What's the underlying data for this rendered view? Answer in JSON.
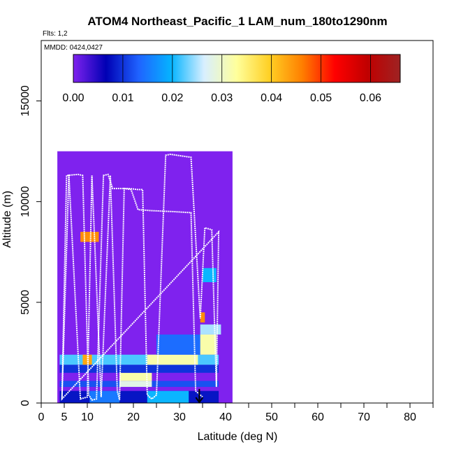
{
  "chart_data": {
    "type": "heatmap",
    "title": "ATOM4 Northeast_Pacific_1 LAM_num_180to1290nm",
    "flights_note": "Flts: 1,2",
    "date_note": "MMDD: 0424,0427",
    "xlabel": "Latitude (deg N)",
    "ylabel": "Altitude (m)",
    "xlim": [
      0,
      85
    ],
    "ylim": [
      0,
      18000
    ],
    "x_ticks": [
      0,
      5,
      10,
      20,
      30,
      40,
      50,
      60,
      70,
      80
    ],
    "x_tick_labels": [
      "0",
      "5",
      "10",
      "20",
      "30",
      "40",
      "50",
      "60",
      "70",
      "80"
    ],
    "y_ticks": [
      0,
      5000,
      10000,
      15000
    ],
    "y_tick_labels": [
      "0",
      "5000",
      "10000",
      "15000"
    ],
    "colorbar": {
      "min": 0.0,
      "max": 0.066,
      "ticks": [
        0.0,
        0.01,
        0.02,
        0.03,
        0.04,
        0.05,
        0.06
      ],
      "tick_labels": [
        "0.00",
        "0.01",
        "0.02",
        "0.03",
        "0.04",
        "0.05",
        "0.06"
      ],
      "colors": [
        "#7f22ee",
        "#0000b4",
        "#1f63ff",
        "#05b4ff",
        "#d8efff",
        "#ffff9b",
        "#ffd024",
        "#ff7f00",
        "#ff0000",
        "#c00000",
        "#9e2323"
      ]
    },
    "cells": [
      {
        "x": [
          3.5,
          41.5
        ],
        "y": [
          0,
          12500
        ],
        "v": 0.0
      },
      {
        "x": [
          4.0,
          38.5
        ],
        "y": [
          0,
          600
        ],
        "v": 0.008
      },
      {
        "x": [
          10.5,
          17.0
        ],
        "y": [
          0,
          600
        ],
        "v": 0.015
      },
      {
        "x": [
          23.0,
          32.0
        ],
        "y": [
          0,
          600
        ],
        "v": 0.02
      },
      {
        "x": [
          4.0,
          38.5
        ],
        "y": [
          800,
          1100
        ],
        "v": 0.012
      },
      {
        "x": [
          17.0,
          24.0
        ],
        "y": [
          800,
          1100
        ],
        "v": 0.028
      },
      {
        "x": [
          17.0,
          24.0
        ],
        "y": [
          1100,
          1500
        ],
        "v": 0.032
      },
      {
        "x": [
          4.0,
          38.5
        ],
        "y": [
          1500,
          1900
        ],
        "v": 0.01
      },
      {
        "x": [
          4.0,
          38.5
        ],
        "y": [
          1900,
          2400
        ],
        "v": 0.022
      },
      {
        "x": [
          9.0,
          11.0
        ],
        "y": [
          1900,
          2400
        ],
        "v": 0.043
      },
      {
        "x": [
          23.0,
          34.0
        ],
        "y": [
          1900,
          2400
        ],
        "v": 0.032
      },
      {
        "x": [
          25.0,
          38.0
        ],
        "y": [
          2400,
          3400
        ],
        "v": 0.014
      },
      {
        "x": [
          34.5,
          38.0
        ],
        "y": [
          2400,
          3400
        ],
        "v": 0.032
      },
      {
        "x": [
          34.5,
          39.0
        ],
        "y": [
          3400,
          3900
        ],
        "v": 0.025
      },
      {
        "x": [
          34.5,
          35.5
        ],
        "y": [
          4000,
          4500
        ],
        "v": 0.045
      },
      {
        "x": [
          35.0,
          38.0
        ],
        "y": [
          6000,
          6700
        ],
        "v": 0.02
      },
      {
        "x": [
          8.5,
          12.5
        ],
        "y": [
          8000,
          8500
        ],
        "v": 0.045
      }
    ],
    "flight_track": [
      [
        4.5,
        200
      ],
      [
        5.5,
        11300
      ],
      [
        8.0,
        11350
      ],
      [
        9.0,
        11300
      ],
      [
        10.3,
        400
      ],
      [
        11.0,
        150
      ],
      [
        12.0,
        200
      ],
      [
        13.5,
        11300
      ],
      [
        14.5,
        11350
      ],
      [
        15.5,
        10650
      ],
      [
        19.0,
        10650
      ],
      [
        21.0,
        10600
      ],
      [
        22.0,
        10600
      ],
      [
        23.0,
        400
      ],
      [
        24.0,
        200
      ],
      [
        25.0,
        400
      ],
      [
        27.0,
        12300
      ],
      [
        28.0,
        12350
      ],
      [
        31.0,
        12250
      ],
      [
        32.5,
        12200
      ],
      [
        34.5,
        4200
      ],
      [
        35.5,
        8700
      ],
      [
        37.0,
        8600
      ],
      [
        38.0,
        800
      ],
      [
        38.5,
        8500
      ],
      [
        4.5,
        200
      ],
      [
        6.0,
        11350
      ],
      [
        8.5,
        200
      ],
      [
        10.0,
        300
      ],
      [
        11.0,
        11300
      ],
      [
        13.0,
        300
      ],
      [
        15.0,
        11300
      ],
      [
        16.5,
        600
      ],
      [
        17.0,
        150
      ],
      [
        18.0,
        10650
      ],
      [
        19.5,
        10600
      ],
      [
        21.0,
        9600
      ],
      [
        24.0,
        9550
      ],
      [
        29.0,
        9500
      ],
      [
        32.5,
        9450
      ],
      [
        33.5,
        600
      ],
      [
        35.0,
        300
      ]
    ],
    "arrow": {
      "x": 34.3,
      "y_from": 700,
      "y_to": 0
    }
  }
}
